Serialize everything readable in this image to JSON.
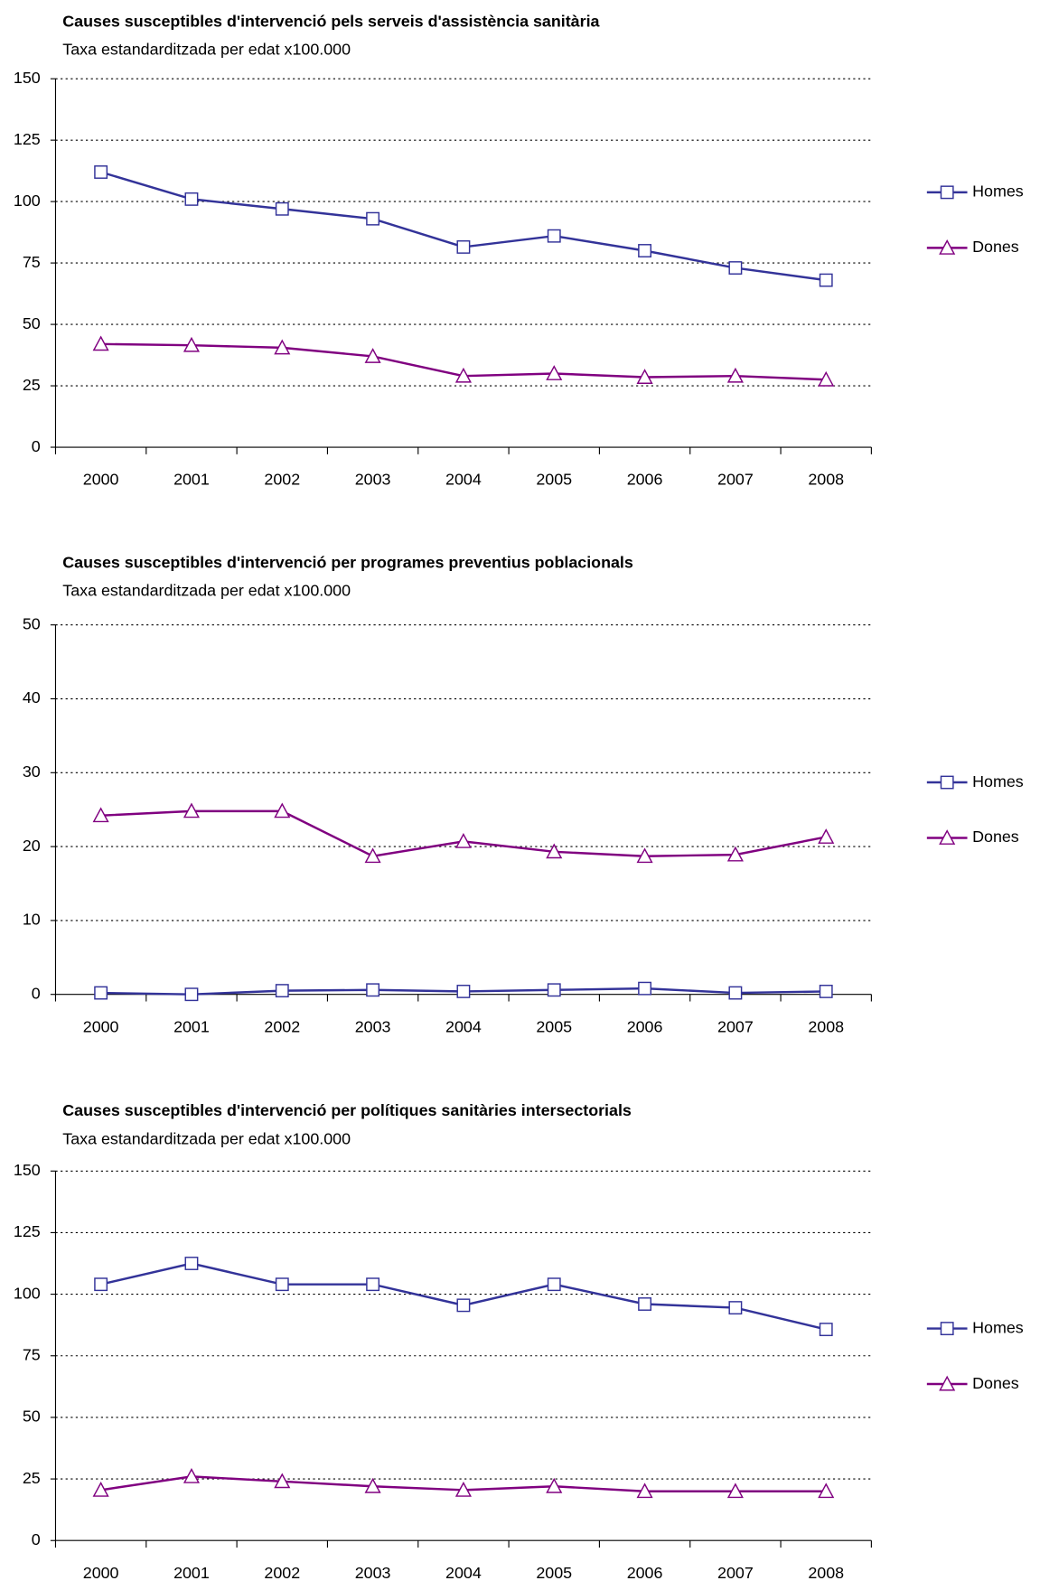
{
  "chart_data": [
    {
      "type": "line",
      "title": "Causes susceptibles d'intervenció pels serveis d'assistència sanitària",
      "subtitle": "Taxa estandarditzada per edat x100.000",
      "categories": [
        "2000",
        "2001",
        "2002",
        "2003",
        "2004",
        "2005",
        "2006",
        "2007",
        "2008"
      ],
      "series": [
        {
          "name": "Homes",
          "color": "#333399",
          "marker": "square",
          "values": [
            112,
            101,
            97,
            93,
            81.5,
            86,
            80,
            73,
            68
          ]
        },
        {
          "name": "Dones",
          "color": "#800080",
          "marker": "triangle",
          "values": [
            42,
            41.5,
            40.5,
            37,
            29,
            30,
            28.5,
            29,
            27.5
          ]
        }
      ],
      "ylim": [
        0,
        150
      ],
      "yticks": [
        0,
        25,
        50,
        75,
        100,
        125,
        150
      ],
      "grid": true,
      "legend": "right"
    },
    {
      "type": "line",
      "title": "Causes susceptibles d'intervenció per programes preventius poblacionals",
      "subtitle": "Taxa estandarditzada per edat x100.000",
      "categories": [
        "2000",
        "2001",
        "2002",
        "2003",
        "2004",
        "2005",
        "2006",
        "2007",
        "2008"
      ],
      "series": [
        {
          "name": "Homes",
          "color": "#333399",
          "marker": "square",
          "values": [
            0.2,
            0,
            0.5,
            0.6,
            0.4,
            0.6,
            0.8,
            0.2,
            0.4
          ]
        },
        {
          "name": "Dones",
          "color": "#800080",
          "marker": "triangle",
          "values": [
            24.2,
            24.8,
            24.8,
            18.7,
            20.7,
            19.3,
            18.7,
            18.9,
            21.3
          ]
        }
      ],
      "ylim": [
        0,
        50
      ],
      "yticks": [
        0,
        10,
        20,
        30,
        40,
        50
      ],
      "grid": true,
      "legend": "right"
    },
    {
      "type": "line",
      "title": "Causes susceptibles d'intervenció per polítiques sanitàries intersectorials",
      "subtitle": "Taxa estandarditzada per edat x100.000",
      "categories": [
        "2000",
        "2001",
        "2002",
        "2003",
        "2004",
        "2005",
        "2006",
        "2007",
        "2008"
      ],
      "series": [
        {
          "name": "Homes",
          "color": "#333399",
          "marker": "square",
          "values": [
            104,
            112.5,
            104,
            104,
            95.5,
            104,
            96,
            94.5,
            85.7
          ]
        },
        {
          "name": "Dones",
          "color": "#800080",
          "marker": "triangle",
          "values": [
            20.5,
            26,
            24,
            22,
            20.5,
            22,
            20,
            20,
            20
          ]
        }
      ],
      "ylim": [
        0,
        150
      ],
      "yticks": [
        0,
        25,
        50,
        75,
        100,
        125,
        150
      ],
      "grid": true,
      "legend": "right"
    }
  ]
}
